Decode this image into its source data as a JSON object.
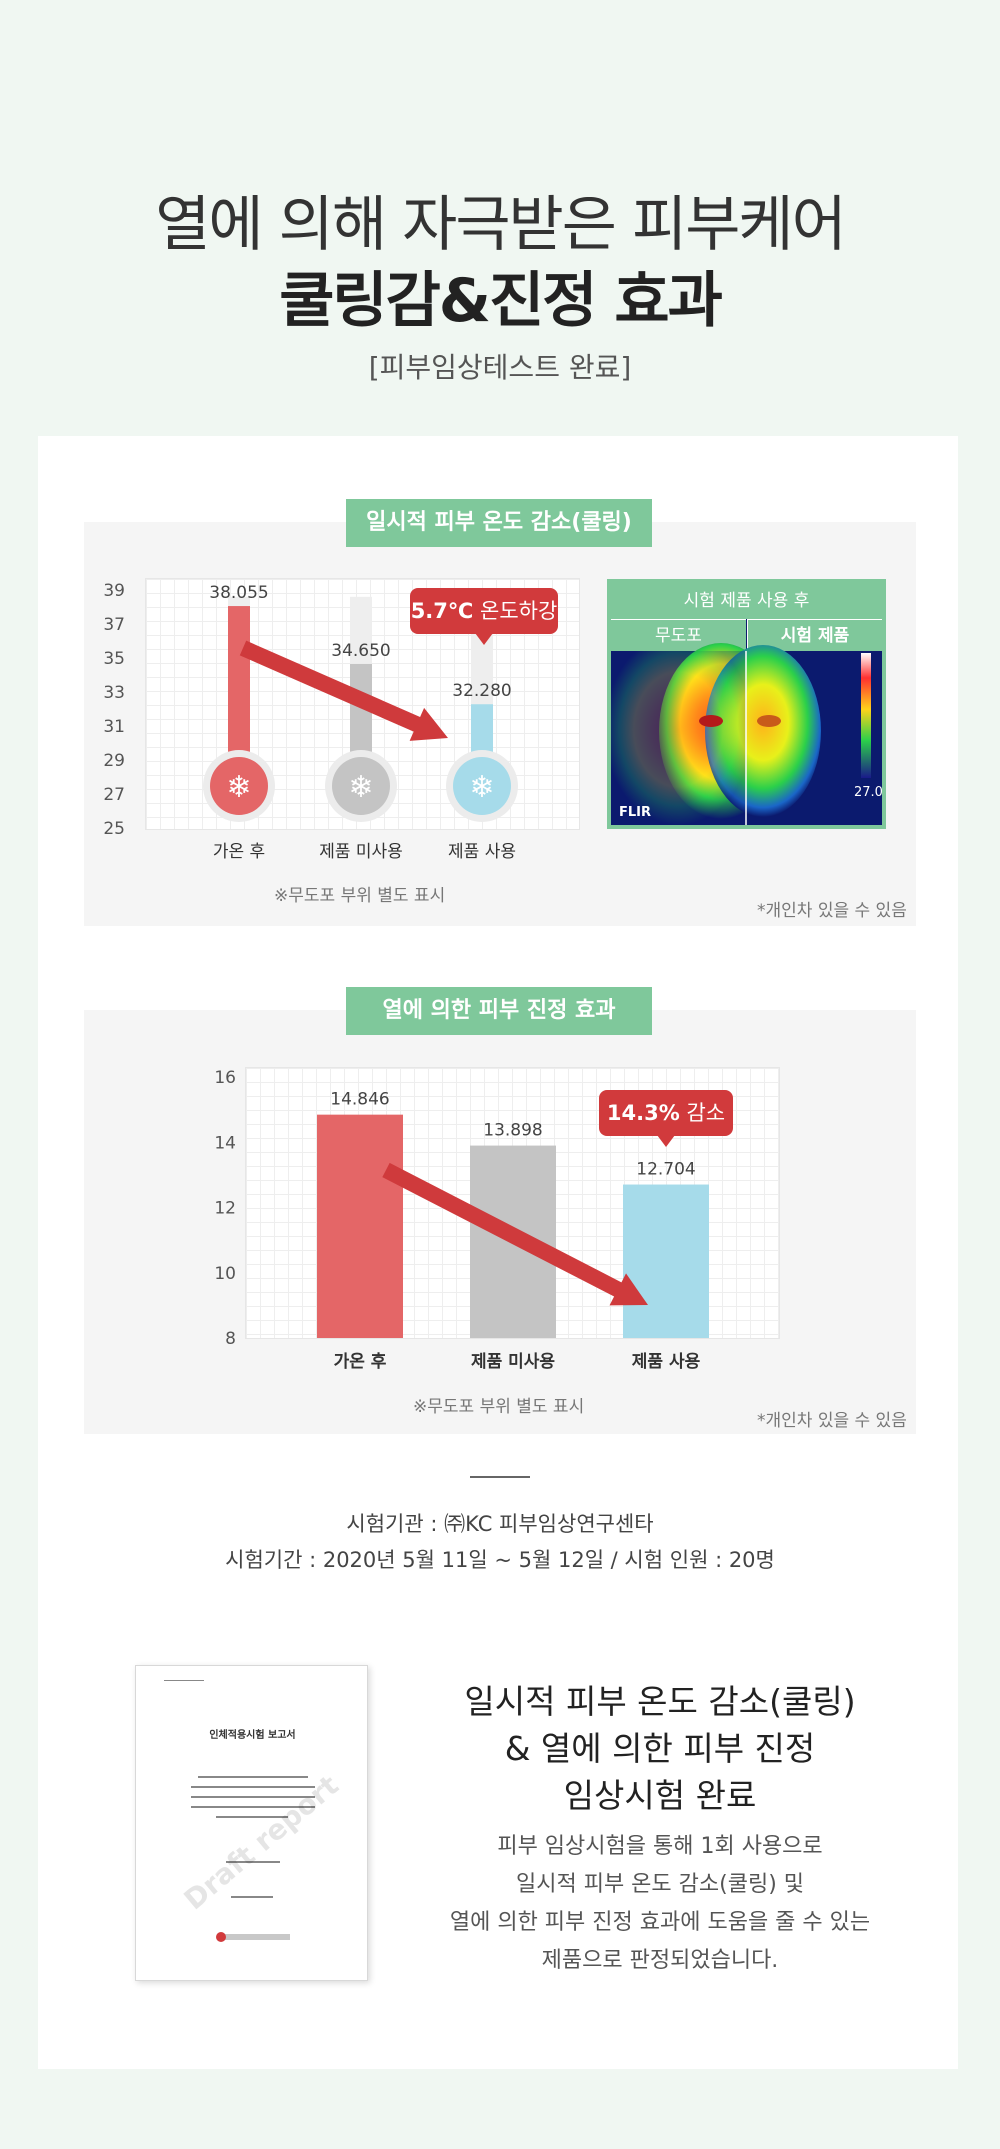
{
  "hero": {
    "title_line1": "열에 의해 자극받은 피부케어",
    "title_line2": "쿨링감&진정 효과",
    "subtitle": "[피부임상테스트 완료]"
  },
  "chart_data": [
    {
      "type": "bar",
      "title": "일시적 피부 온도 감소(쿨링)",
      "categories": [
        "가온 후",
        "제품 미사용",
        "제품 사용"
      ],
      "values": [
        38.055,
        34.65,
        32.28
      ],
      "value_labels": [
        "38.055",
        "34.650",
        "32.280"
      ],
      "ylim": [
        25,
        39
      ],
      "yticks": [
        "39",
        "37",
        "35",
        "33",
        "31",
        "29",
        "27",
        "25"
      ],
      "colors": [
        "#e46667",
        "#c4c4c4",
        "#a6dbea"
      ],
      "callout": {
        "value": "5.7℃",
        "text": "온도하강"
      },
      "grid": true
    },
    {
      "type": "bar",
      "title": "열에 의한 피부 진정 효과",
      "categories": [
        "가온 후",
        "제품 미사용",
        "제품 사용"
      ],
      "values": [
        14.846,
        13.898,
        12.704
      ],
      "value_labels": [
        "14.846",
        "13.898",
        "12.704"
      ],
      "ylim": [
        8,
        16
      ],
      "yticks": [
        "16",
        "14",
        "12",
        "10",
        "8"
      ],
      "colors": [
        "#e46667",
        "#c4c4c4",
        "#a6dbea"
      ],
      "callout": {
        "value": "14.3%",
        "text": "감소"
      },
      "grid": true
    }
  ],
  "notes": {
    "area_note": "※무도포 부위 별도 표시",
    "individual_note": "*개인차 있을 수 있음"
  },
  "thermal": {
    "header": "시험 제품 사용 후",
    "left_label": "무도포",
    "right_label": "시험 제품",
    "scale_value": "27.0",
    "brand": "FLIR"
  },
  "test_info": {
    "institution": "시험기관 : ㈜KC 피부임상연구센타",
    "period": "시험기간 : 2020년 5월 11일 ~ 5월 12일 / 시험 인원 : 20명"
  },
  "report_doc": {
    "title": "인체적용시험 보고서",
    "watermark": "Draft report"
  },
  "result": {
    "title_lines": [
      "일시적 피부 온도 감소(쿨링)",
      "& 열에 의한 피부 진정",
      "임상시험 완료"
    ],
    "body_lines": [
      "피부 임상시험을 통해 1회 사용으로",
      "일시적 피부 온도 감소(쿨링) 및",
      "열에 의한 피부 진정 효과에 도움을 줄 수 있는",
      "제품으로 판정되었습니다."
    ]
  }
}
